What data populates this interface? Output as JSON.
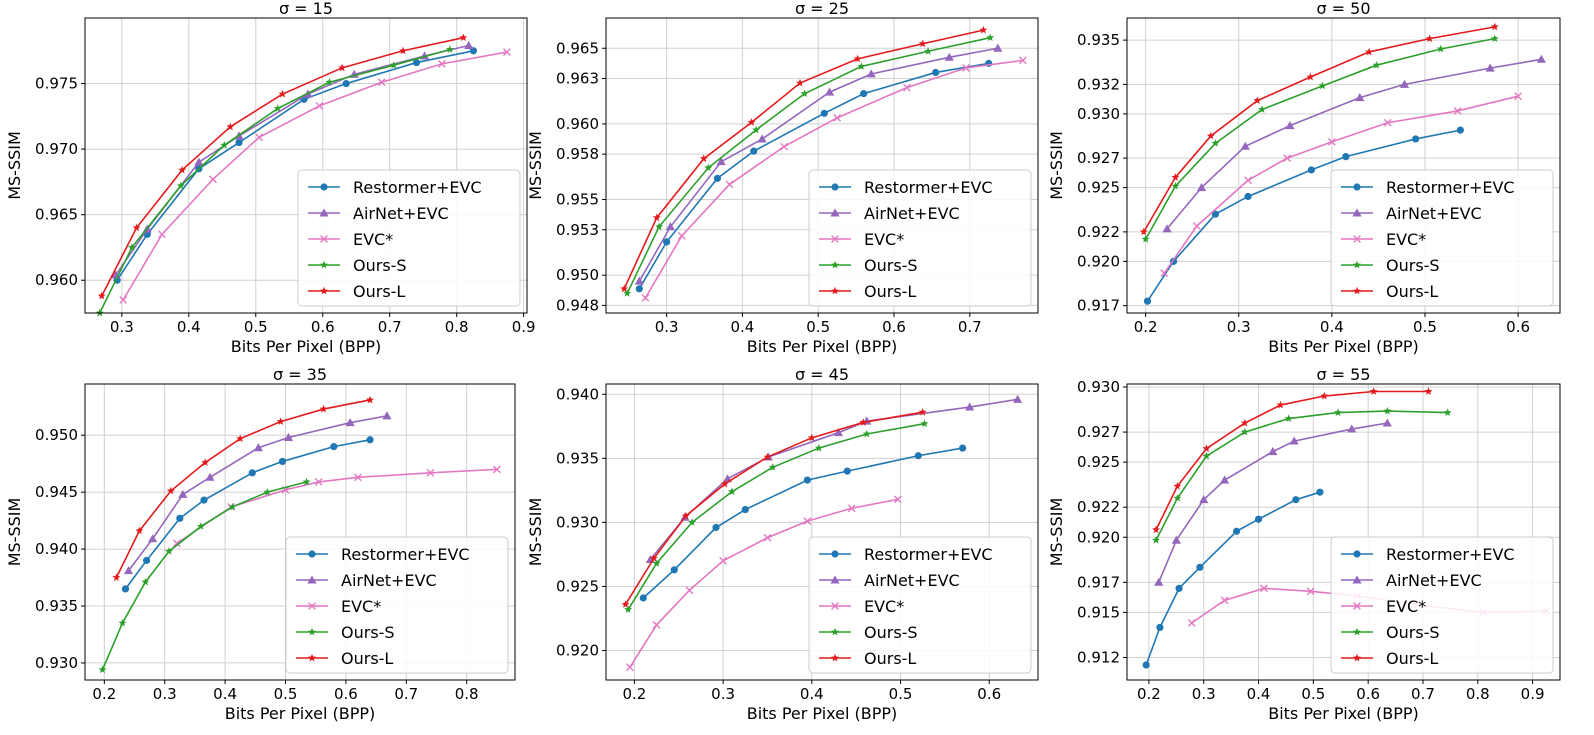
{
  "series_styles": [
    {
      "name": "Restormer+EVC",
      "color": "#1f77b4",
      "marker": "circle"
    },
    {
      "name": "AirNet+EVC",
      "color": "#9467bd",
      "marker": "triangle"
    },
    {
      "name": "EVC*",
      "color": "#e377c2",
      "marker": "x"
    },
    {
      "name": "Ours-S",
      "color": "#2ca02c",
      "marker": "star"
    },
    {
      "name": "Ours-L",
      "color": "#e41a1c",
      "marker": "star"
    }
  ],
  "chart_data": [
    {
      "type": "line",
      "title": "σ = 15",
      "xlabel": "Bits Per Pixel (BPP)",
      "ylabel": "MS-SSIM",
      "xlim": [
        0.245,
        0.905
      ],
      "ylim": [
        0.9575,
        0.98
      ],
      "xticks": [
        0.3,
        0.4,
        0.5,
        0.6,
        0.7,
        0.8,
        0.9
      ],
      "xtick_labels": [
        "0.3",
        "0.4",
        "0.5",
        "0.6",
        "0.7",
        "0.8",
        "0.9"
      ],
      "yticks": [
        0.96,
        0.965,
        0.97,
        0.975
      ],
      "ytick_labels": [
        "0.960",
        "0.965",
        "0.970",
        "0.975"
      ],
      "legend": "lower-right",
      "series": [
        {
          "name": "Restormer+EVC",
          "x": [
            0.293,
            0.338,
            0.415,
            0.475,
            0.572,
            0.635,
            0.74,
            0.825
          ],
          "y": [
            0.96,
            0.9635,
            0.9685,
            0.9705,
            0.9738,
            0.975,
            0.9766,
            0.9775
          ]
        },
        {
          "name": "AirNet+EVC",
          "x": [
            0.291,
            0.338,
            0.415,
            0.475,
            0.578,
            0.647,
            0.752,
            0.818
          ],
          "y": [
            0.9604,
            0.9639,
            0.969,
            0.971,
            0.9742,
            0.9757,
            0.9771,
            0.9779
          ]
        },
        {
          "name": "EVC*",
          "x": [
            0.302,
            0.36,
            0.436,
            0.505,
            0.595,
            0.688,
            0.778,
            0.875
          ],
          "y": [
            0.9585,
            0.9635,
            0.9677,
            0.9709,
            0.9733,
            0.9751,
            0.9765,
            0.9774
          ]
        },
        {
          "name": "Ours-S",
          "x": [
            0.267,
            0.315,
            0.388,
            0.453,
            0.533,
            0.61,
            0.706,
            0.79
          ],
          "y": [
            0.9575,
            0.9625,
            0.9672,
            0.9703,
            0.9731,
            0.9751,
            0.9764,
            0.9776
          ]
        },
        {
          "name": "Ours-L",
          "x": [
            0.27,
            0.322,
            0.39,
            0.462,
            0.54,
            0.629,
            0.72,
            0.81
          ],
          "y": [
            0.9588,
            0.964,
            0.9684,
            0.9717,
            0.9742,
            0.9762,
            0.9775,
            0.9785
          ]
        }
      ]
    },
    {
      "type": "line",
      "title": "σ = 25",
      "xlabel": "Bits Per Pixel (BPP)",
      "ylabel": "MS-SSIM",
      "xlim": [
        0.22,
        0.79
      ],
      "ylim": [
        0.9475,
        0.967
      ],
      "xticks": [
        0.3,
        0.4,
        0.5,
        0.6,
        0.7
      ],
      "xtick_labels": [
        "0.3",
        "0.4",
        "0.5",
        "0.6",
        "0.7"
      ],
      "yticks": [
        0.948,
        0.95,
        0.953,
        0.955,
        0.958,
        0.96,
        0.963,
        0.965
      ],
      "ytick_labels": [
        "0.948",
        "0.950",
        "0.953",
        "0.955",
        "0.958",
        "0.960",
        "0.963",
        "0.965"
      ],
      "legend": "lower-right",
      "series": [
        {
          "name": "Restormer+EVC",
          "x": [
            0.264,
            0.3,
            0.367,
            0.415,
            0.508,
            0.56,
            0.655,
            0.725
          ],
          "y": [
            0.9491,
            0.9522,
            0.9564,
            0.9582,
            0.9607,
            0.962,
            0.9634,
            0.964
          ]
        },
        {
          "name": "AirNet+EVC",
          "x": [
            0.264,
            0.305,
            0.372,
            0.426,
            0.515,
            0.57,
            0.673,
            0.737
          ],
          "y": [
            0.9496,
            0.9532,
            0.9575,
            0.959,
            0.9621,
            0.9633,
            0.9644,
            0.965
          ]
        },
        {
          "name": "EVC*",
          "x": [
            0.272,
            0.32,
            0.383,
            0.455,
            0.525,
            0.617,
            0.695,
            0.77
          ],
          "y": [
            0.9485,
            0.9526,
            0.956,
            0.9585,
            0.9604,
            0.9624,
            0.9637,
            0.9642
          ]
        },
        {
          "name": "Ours-S",
          "x": [
            0.248,
            0.29,
            0.355,
            0.418,
            0.482,
            0.557,
            0.645,
            0.727
          ],
          "y": [
            0.9488,
            0.9532,
            0.9571,
            0.9596,
            0.962,
            0.9638,
            0.9648,
            0.9657
          ]
        },
        {
          "name": "Ours-L",
          "x": [
            0.244,
            0.287,
            0.349,
            0.412,
            0.476,
            0.552,
            0.638,
            0.718
          ],
          "y": [
            0.9491,
            0.9538,
            0.9577,
            0.9601,
            0.9627,
            0.9643,
            0.9653,
            0.9662
          ]
        }
      ]
    },
    {
      "type": "line",
      "title": "σ = 50",
      "xlabel": "Bits Per Pixel (BPP)",
      "ylabel": "MS-SSIM",
      "xlim": [
        0.18,
        0.645
      ],
      "ylim": [
        0.9165,
        0.9365
      ],
      "xticks": [
        0.2,
        0.3,
        0.4,
        0.5,
        0.6
      ],
      "xtick_labels": [
        "0.2",
        "0.3",
        "0.4",
        "0.5",
        "0.6"
      ],
      "yticks": [
        0.917,
        0.92,
        0.922,
        0.925,
        0.927,
        0.93,
        0.932,
        0.935
      ],
      "ytick_labels": [
        "0.917",
        "0.920",
        "0.922",
        "0.925",
        "0.927",
        "0.930",
        "0.932",
        "0.935"
      ],
      "legend": "lower-right",
      "series": [
        {
          "name": "Restormer+EVC",
          "x": [
            0.202,
            0.23,
            0.275,
            0.31,
            0.378,
            0.415,
            0.49,
            0.538
          ],
          "y": [
            0.9173,
            0.92,
            0.9232,
            0.9244,
            0.9262,
            0.9271,
            0.9283,
            0.9289
          ]
        },
        {
          "name": "AirNet+EVC",
          "x": [
            0.223,
            0.26,
            0.307,
            0.355,
            0.43,
            0.478,
            0.57,
            0.625
          ],
          "y": [
            0.9222,
            0.925,
            0.9278,
            0.9292,
            0.9311,
            0.932,
            0.9331,
            0.9337
          ]
        },
        {
          "name": "EVC*",
          "x": [
            0.22,
            0.255,
            0.31,
            0.352,
            0.4,
            0.46,
            0.535,
            0.6
          ],
          "y": [
            0.9192,
            0.9224,
            0.9255,
            0.927,
            0.9281,
            0.9294,
            0.9302,
            0.9312
          ]
        },
        {
          "name": "Ours-S",
          "x": [
            0.2,
            0.232,
            0.275,
            0.325,
            0.39,
            0.448,
            0.517,
            0.575
          ],
          "y": [
            0.9215,
            0.9251,
            0.928,
            0.9303,
            0.9319,
            0.9333,
            0.9344,
            0.9351
          ]
        },
        {
          "name": "Ours-L",
          "x": [
            0.198,
            0.232,
            0.27,
            0.32,
            0.377,
            0.44,
            0.505,
            0.575
          ],
          "y": [
            0.922,
            0.9257,
            0.9285,
            0.9309,
            0.9325,
            0.9342,
            0.9351,
            0.9359
          ]
        }
      ]
    },
    {
      "type": "line",
      "title": "σ = 35",
      "xlabel": "Bits Per Pixel (BPP)",
      "ylabel": "MS-SSIM",
      "xlim": [
        0.168,
        0.88
      ],
      "ylim": [
        0.9285,
        0.9545
      ],
      "xticks": [
        0.2,
        0.3,
        0.4,
        0.5,
        0.6,
        0.7,
        0.8
      ],
      "xtick_labels": [
        "0.2",
        "0.3",
        "0.4",
        "0.5",
        "0.6",
        "0.7",
        "0.8"
      ],
      "yticks": [
        0.93,
        0.935,
        0.94,
        0.945,
        0.95
      ],
      "ytick_labels": [
        "0.930",
        "0.935",
        "0.940",
        "0.945",
        "0.950"
      ],
      "legend": "lower-right",
      "series": [
        {
          "name": "Restormer+EVC",
          "x": [
            0.235,
            0.27,
            0.325,
            0.365,
            0.445,
            0.495,
            0.58,
            0.64
          ],
          "y": [
            0.9365,
            0.939,
            0.9427,
            0.9443,
            0.9467,
            0.9477,
            0.949,
            0.9496
          ]
        },
        {
          "name": "AirNet+EVC",
          "x": [
            0.24,
            0.28,
            0.33,
            0.375,
            0.455,
            0.505,
            0.607,
            0.668
          ],
          "y": [
            0.9381,
            0.9409,
            0.9448,
            0.9463,
            0.9489,
            0.9498,
            0.9511,
            0.9517
          ]
        },
        {
          "name": "EVC*",
          "x": [
            0.32,
            0.41,
            0.5,
            0.555,
            0.62,
            0.74,
            0.85
          ],
          "y": [
            0.9405,
            0.9437,
            0.9452,
            0.9459,
            0.9463,
            0.9467,
            0.947
          ]
        },
        {
          "name": "Ours-S",
          "x": [
            0.197,
            0.23,
            0.268,
            0.307,
            0.36,
            0.412,
            0.47,
            0.535
          ],
          "y": [
            0.9294,
            0.9335,
            0.9371,
            0.9398,
            0.942,
            0.9437,
            0.945,
            0.9459
          ]
        },
        {
          "name": "Ours-L",
          "x": [
            0.22,
            0.258,
            0.31,
            0.367,
            0.425,
            0.492,
            0.563,
            0.64
          ],
          "y": [
            0.9375,
            0.9416,
            0.9451,
            0.9476,
            0.9497,
            0.9512,
            0.9523,
            0.9531
          ]
        }
      ]
    },
    {
      "type": "line",
      "title": "σ = 45",
      "xlabel": "Bits Per Pixel (BPP)",
      "ylabel": "MS-SSIM",
      "xlim": [
        0.168,
        0.655
      ],
      "ylim": [
        0.9177,
        0.9408
      ],
      "xticks": [
        0.2,
        0.3,
        0.4,
        0.5,
        0.6
      ],
      "xtick_labels": [
        "0.2",
        "0.3",
        "0.4",
        "0.5",
        "0.6"
      ],
      "yticks": [
        0.92,
        0.925,
        0.93,
        0.935,
        0.94
      ],
      "ytick_labels": [
        "0.920",
        "0.925",
        "0.930",
        "0.935",
        "0.940"
      ],
      "legend": "lower-right",
      "series": [
        {
          "name": "Restormer+EVC",
          "x": [
            0.21,
            0.245,
            0.292,
            0.325,
            0.395,
            0.44,
            0.52,
            0.57
          ],
          "y": [
            0.9241,
            0.9263,
            0.9296,
            0.931,
            0.9333,
            0.934,
            0.9352,
            0.9358
          ]
        },
        {
          "name": "AirNet+EVC",
          "x": [
            0.218,
            0.257,
            0.305,
            0.351,
            0.43,
            0.462,
            0.578,
            0.632
          ],
          "y": [
            0.9271,
            0.9304,
            0.9334,
            0.9351,
            0.937,
            0.9379,
            0.939,
            0.9396
          ]
        },
        {
          "name": "EVC*",
          "x": [
            0.195,
            0.225,
            0.262,
            0.3,
            0.35,
            0.395,
            0.445,
            0.497
          ],
          "y": [
            0.9187,
            0.922,
            0.9247,
            0.927,
            0.9288,
            0.9301,
            0.9311,
            0.9318
          ]
        },
        {
          "name": "Ours-S",
          "x": [
            0.193,
            0.225,
            0.265,
            0.31,
            0.356,
            0.408,
            0.462,
            0.527
          ],
          "y": [
            0.9232,
            0.9268,
            0.93,
            0.9324,
            0.9343,
            0.9358,
            0.9369,
            0.9377
          ]
        },
        {
          "name": "Ours-L",
          "x": [
            0.19,
            0.222,
            0.258,
            0.302,
            0.35,
            0.4,
            0.458,
            0.525
          ],
          "y": [
            0.9236,
            0.9272,
            0.9305,
            0.933,
            0.9351,
            0.9366,
            0.9378,
            0.9386
          ]
        }
      ]
    },
    {
      "type": "line",
      "title": "σ = 55",
      "xlabel": "Bits Per Pixel (BPP)",
      "ylabel": "MS-SSIM",
      "xlim": [
        0.16,
        0.95
      ],
      "ylim": [
        0.9105,
        0.9302
      ],
      "xticks": [
        0.2,
        0.3,
        0.4,
        0.5,
        0.6,
        0.7,
        0.8,
        0.9
      ],
      "xtick_labels": [
        "0.2",
        "0.3",
        "0.4",
        "0.5",
        "0.6",
        "0.7",
        "0.8",
        "0.9"
      ],
      "yticks": [
        0.912,
        0.915,
        0.917,
        0.92,
        0.922,
        0.925,
        0.927,
        0.93
      ],
      "ytick_labels": [
        "0.912",
        "0.915",
        "0.917",
        "0.920",
        "0.922",
        "0.925",
        "0.927",
        "0.930"
      ],
      "legend": "lower-right",
      "series": [
        {
          "name": "Restormer+EVC",
          "x": [
            0.195,
            0.22,
            0.255,
            0.293,
            0.36,
            0.4,
            0.468,
            0.512
          ],
          "y": [
            0.9115,
            0.914,
            0.9166,
            0.918,
            0.9204,
            0.9212,
            0.9225,
            0.923
          ]
        },
        {
          "name": "AirNet+EVC",
          "x": [
            0.218,
            0.25,
            0.3,
            0.338,
            0.426,
            0.465,
            0.57,
            0.635
          ],
          "y": [
            0.917,
            0.9198,
            0.9225,
            0.9238,
            0.9257,
            0.9264,
            0.9272,
            0.9276
          ]
        },
        {
          "name": "EVC*",
          "x": [
            0.278,
            0.338,
            0.41,
            0.495,
            0.58,
            0.69,
            0.81,
            0.925
          ],
          "y": [
            0.9143,
            0.9158,
            0.9166,
            0.9164,
            0.9161,
            0.9155,
            0.915,
            0.9151
          ]
        },
        {
          "name": "Ours-S",
          "x": [
            0.213,
            0.252,
            0.305,
            0.375,
            0.455,
            0.545,
            0.635,
            0.745
          ],
          "y": [
            0.9198,
            0.9226,
            0.9254,
            0.927,
            0.9279,
            0.9283,
            0.9284,
            0.9283
          ]
        },
        {
          "name": "Ours-L",
          "x": [
            0.213,
            0.252,
            0.305,
            0.375,
            0.44,
            0.52,
            0.61,
            0.71
          ],
          "y": [
            0.9205,
            0.9234,
            0.9259,
            0.9276,
            0.9288,
            0.9294,
            0.9297,
            0.9297
          ]
        }
      ]
    }
  ]
}
